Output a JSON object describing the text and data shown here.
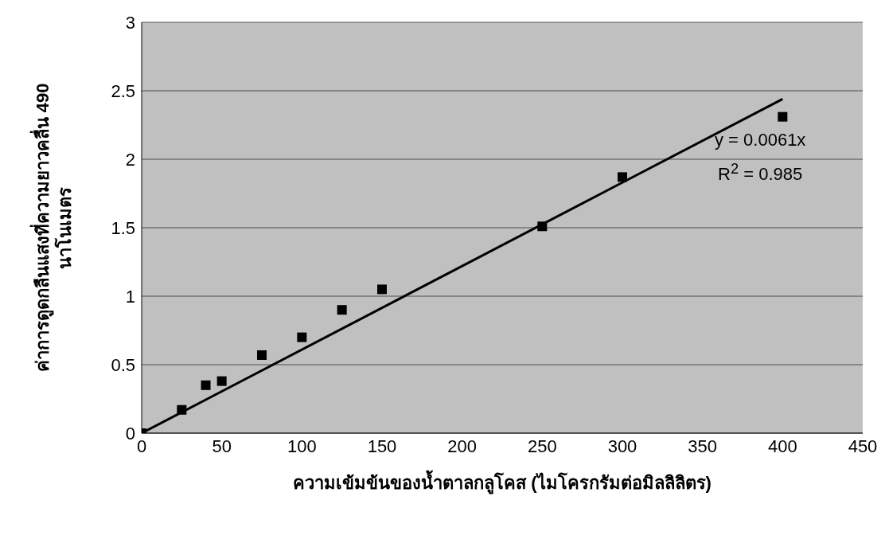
{
  "chart_data": {
    "type": "scatter",
    "xlabel": "ความเข้มข้นของน้ำตาลกลูโคส (ไมโครกรัมต่อมิลลิลิตร)",
    "ylabel": "ค่าการดูดกลืนแสงที่ความยาวคลื่น 490 นาโนเมตร",
    "x": [
      0,
      25,
      40,
      50,
      75,
      100,
      125,
      150,
      250,
      300,
      400
    ],
    "series": [
      {
        "color": "#000000",
        "marker": "square",
        "values": [
          0,
          0.17,
          0.35,
          0.38,
          0.57,
          0.7,
          0.9,
          1.05,
          1.51,
          1.87,
          2.31
        ]
      },
      {
        "type": "line",
        "color": "#000000",
        "line_style": "solid",
        "marker": "none",
        "x": [
          0,
          400
        ],
        "values": [
          0,
          2.44
        ]
      }
    ],
    "annotations": [
      "y = 0.0061x",
      "R$^{2}$ = 0.985"
    ],
    "xlim": [
      0,
      450
    ],
    "xticks": [
      0,
      50,
      100,
      150,
      200,
      250,
      300,
      350,
      400,
      450
    ],
    "ylim": [
      0,
      3
    ],
    "yticks": [
      0,
      0.5,
      1,
      1.5,
      2,
      2.5,
      3
    ],
    "grid": "y"
  }
}
